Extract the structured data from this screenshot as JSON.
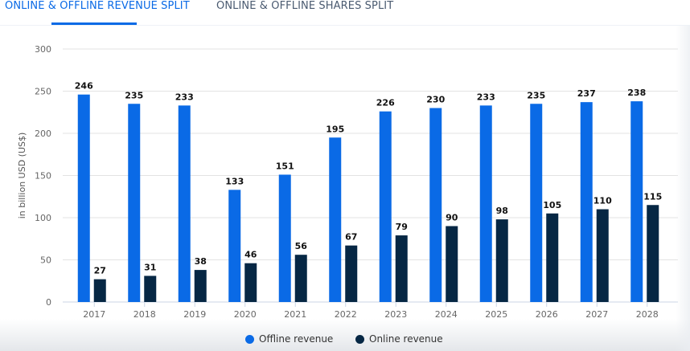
{
  "tabs": [
    {
      "label": "ONLINE & OFFLINE REVENUE SPLIT",
      "active": true
    },
    {
      "label": "ONLINE & OFFLINE SHARES SPLIT",
      "active": false
    }
  ],
  "colors": {
    "offline": "#0a6ae6",
    "online": "#062744",
    "accent": "#0a6ae6"
  },
  "chart_data": {
    "type": "bar",
    "title": "",
    "xlabel": "",
    "ylabel": "in billion USD (US$)",
    "ylim": [
      0,
      300
    ],
    "yticks": [
      0,
      50,
      100,
      150,
      200,
      250,
      300
    ],
    "categories": [
      "2017",
      "2018",
      "2019",
      "2020",
      "2021",
      "2022",
      "2023",
      "2024",
      "2025",
      "2026",
      "2027",
      "2028"
    ],
    "series": [
      {
        "name": "Offline revenue",
        "values": [
          246,
          235,
          233,
          133,
          151,
          195,
          226,
          230,
          233,
          235,
          237,
          238
        ]
      },
      {
        "name": "Online revenue",
        "values": [
          27,
          31,
          38,
          46,
          56,
          67,
          79,
          90,
          98,
          105,
          110,
          115
        ]
      }
    ],
    "grid": true,
    "legend": "bottom-center",
    "data_labels": true
  }
}
